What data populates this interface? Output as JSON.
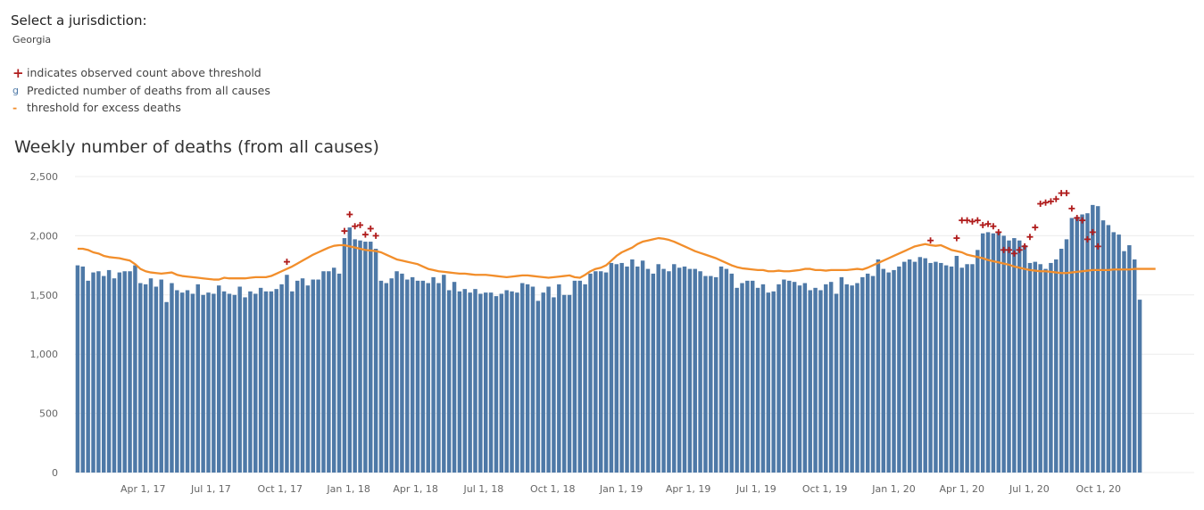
{
  "jurisdiction": {
    "label": "Select a jurisdiction:",
    "selected": "Georgia"
  },
  "legend": [
    {
      "marker": "+",
      "label": "indicates observed count above threshold",
      "color": "#b01c1c"
    },
    {
      "marker": "g",
      "label": "Predicted number of deaths from all causes",
      "color": "#4e79a7"
    },
    {
      "marker": "-",
      "label": "threshold for excess deaths",
      "color": "#f28e2b"
    }
  ],
  "chart_data": {
    "type": "bar",
    "title": "Weekly number of deaths (from all causes)",
    "xlabel": "",
    "ylabel": "",
    "ylim": [
      0,
      2500
    ],
    "yticks": [
      0,
      500,
      1000,
      1500,
      2000,
      2500
    ],
    "ytick_labels": [
      "0",
      "500",
      "1,000",
      "1,500",
      "2,000",
      "2,500"
    ],
    "xticks": [
      {
        "label": "Apr 1, 17",
        "week_index": 12.5
      },
      {
        "label": "Jul 1, 17",
        "week_index": 25.5
      },
      {
        "label": "Oct 1, 17",
        "week_index": 38.7
      },
      {
        "label": "Jan 1, 18",
        "week_index": 51.8
      },
      {
        "label": "Apr 1, 18",
        "week_index": 64.6
      },
      {
        "label": "Jul 1, 18",
        "week_index": 77.6
      },
      {
        "label": "Oct 1, 18",
        "week_index": 90.8
      },
      {
        "label": "Jan 1, 19",
        "week_index": 103.9
      },
      {
        "label": "Apr 1, 19",
        "week_index": 116.7
      },
      {
        "label": "Jul 1, 19",
        "week_index": 129.7
      },
      {
        "label": "Oct 1, 19",
        "week_index": 142.8
      },
      {
        "label": "Jan 1, 20",
        "week_index": 156.0
      },
      {
        "label": "Apr 1, 20",
        "week_index": 169.0
      },
      {
        "label": "Jul 1, 20",
        "week_index": 181.9
      },
      {
        "label": "Oct 1, 20",
        "week_index": 195.1
      }
    ],
    "grid": true,
    "legend_position": "top-left",
    "colors": {
      "bars": "#4e79a7",
      "threshold": "#f28e2b",
      "above": "#b01c1c"
    },
    "series": [
      {
        "name": "Predicted number of deaths from all causes",
        "values": [
          1750,
          1740,
          1620,
          1690,
          1700,
          1660,
          1710,
          1640,
          1690,
          1700,
          1700,
          1750,
          1600,
          1590,
          1640,
          1570,
          1630,
          1440,
          1600,
          1540,
          1520,
          1540,
          1510,
          1590,
          1500,
          1520,
          1510,
          1580,
          1530,
          1510,
          1500,
          1570,
          1480,
          1530,
          1510,
          1560,
          1530,
          1530,
          1550,
          1590,
          1670,
          1530,
          1620,
          1640,
          1580,
          1630,
          1630,
          1700,
          1700,
          1730,
          1680,
          1980,
          2070,
          1970,
          1960,
          1950,
          1950,
          1890,
          1620,
          1600,
          1640,
          1700,
          1680,
          1630,
          1650,
          1620,
          1620,
          1600,
          1650,
          1600,
          1670,
          1540,
          1610,
          1530,
          1550,
          1520,
          1550,
          1510,
          1520,
          1520,
          1490,
          1510,
          1540,
          1530,
          1520,
          1600,
          1590,
          1570,
          1450,
          1520,
          1570,
          1480,
          1590,
          1500,
          1500,
          1620,
          1620,
          1590,
          1680,
          1700,
          1700,
          1690,
          1770,
          1760,
          1770,
          1740,
          1800,
          1740,
          1790,
          1720,
          1680,
          1760,
          1720,
          1700,
          1760,
          1730,
          1740,
          1720,
          1720,
          1700,
          1660,
          1660,
          1650,
          1740,
          1720,
          1680,
          1560,
          1600,
          1620,
          1620,
          1560,
          1590,
          1520,
          1530,
          1590,
          1630,
          1620,
          1610,
          1580,
          1600,
          1540,
          1560,
          1540,
          1590,
          1610,
          1510,
          1650,
          1590,
          1580,
          1600,
          1650,
          1680,
          1660,
          1800,
          1720,
          1690,
          1710,
          1740,
          1780,
          1800,
          1780,
          1820,
          1810,
          1770,
          1780,
          1770,
          1750,
          1740,
          1830,
          1730,
          1760,
          1760,
          1880,
          2020,
          2030,
          2020,
          2030,
          2000,
          1960,
          1980,
          1960,
          1920,
          1770,
          1780,
          1760,
          1720,
          1770,
          1800,
          1890,
          1970,
          2150,
          2160,
          2180,
          2190,
          2260,
          2250,
          2130,
          2090,
          2030,
          2010,
          1870,
          1920,
          1800,
          1460
        ]
      },
      {
        "name": "threshold for excess deaths",
        "values": [
          1890,
          1890,
          1880,
          1860,
          1850,
          1830,
          1820,
          1815,
          1810,
          1800,
          1790,
          1760,
          1720,
          1700,
          1690,
          1685,
          1680,
          1685,
          1690,
          1670,
          1660,
          1655,
          1650,
          1645,
          1640,
          1635,
          1630,
          1630,
          1645,
          1640,
          1640,
          1640,
          1640,
          1645,
          1650,
          1650,
          1650,
          1660,
          1680,
          1700,
          1720,
          1740,
          1765,
          1790,
          1815,
          1840,
          1860,
          1880,
          1900,
          1915,
          1920,
          1920,
          1910,
          1900,
          1890,
          1880,
          1875,
          1870,
          1860,
          1840,
          1820,
          1800,
          1790,
          1780,
          1770,
          1760,
          1740,
          1720,
          1710,
          1700,
          1695,
          1690,
          1685,
          1680,
          1680,
          1675,
          1670,
          1670,
          1670,
          1665,
          1660,
          1655,
          1650,
          1655,
          1660,
          1665,
          1665,
          1660,
          1655,
          1650,
          1645,
          1650,
          1655,
          1660,
          1665,
          1650,
          1645,
          1670,
          1700,
          1720,
          1730,
          1750,
          1790,
          1830,
          1860,
          1880,
          1900,
          1930,
          1950,
          1960,
          1970,
          1980,
          1975,
          1965,
          1950,
          1930,
          1910,
          1890,
          1870,
          1855,
          1840,
          1825,
          1810,
          1790,
          1770,
          1750,
          1735,
          1725,
          1720,
          1715,
          1710,
          1710,
          1700,
          1700,
          1705,
          1700,
          1700,
          1705,
          1710,
          1720,
          1720,
          1710,
          1710,
          1705,
          1710,
          1710,
          1710,
          1710,
          1715,
          1720,
          1715,
          1730,
          1750,
          1770,
          1790,
          1810,
          1830,
          1850,
          1870,
          1890,
          1910,
          1920,
          1930,
          1920,
          1915,
          1920,
          1900,
          1880,
          1870,
          1860,
          1840,
          1830,
          1820,
          1810,
          1795,
          1785,
          1775,
          1765,
          1755,
          1740,
          1730,
          1720,
          1710,
          1705,
          1700,
          1700,
          1695,
          1690,
          1685,
          1685,
          1690,
          1695,
          1700,
          1705,
          1710,
          1710,
          1710,
          1710,
          1715,
          1715,
          1715,
          1715,
          1720,
          1720,
          1720,
          1720,
          1720
        ]
      }
    ],
    "above_threshold_markers": [
      {
        "week_index": 40,
        "value": 1780
      },
      {
        "week_index": 51,
        "value": 2040
      },
      {
        "week_index": 52,
        "value": 2180
      },
      {
        "week_index": 53,
        "value": 2080
      },
      {
        "week_index": 54,
        "value": 2090
      },
      {
        "week_index": 55,
        "value": 2010
      },
      {
        "week_index": 56,
        "value": 2060
      },
      {
        "week_index": 57,
        "value": 2000
      },
      {
        "week_index": 163,
        "value": 1960
      },
      {
        "week_index": 168,
        "value": 1980
      },
      {
        "week_index": 169,
        "value": 2130
      },
      {
        "week_index": 170,
        "value": 2130
      },
      {
        "week_index": 171,
        "value": 2120
      },
      {
        "week_index": 172,
        "value": 2130
      },
      {
        "week_index": 173,
        "value": 2090
      },
      {
        "week_index": 174,
        "value": 2100
      },
      {
        "week_index": 175,
        "value": 2080
      },
      {
        "week_index": 176,
        "value": 2030
      },
      {
        "week_index": 177,
        "value": 1880
      },
      {
        "week_index": 178,
        "value": 1880
      },
      {
        "week_index": 179,
        "value": 1850
      },
      {
        "week_index": 180,
        "value": 1880
      },
      {
        "week_index": 181,
        "value": 1910
      },
      {
        "week_index": 182,
        "value": 1990
      },
      {
        "week_index": 183,
        "value": 2070
      },
      {
        "week_index": 184,
        "value": 2270
      },
      {
        "week_index": 185,
        "value": 2280
      },
      {
        "week_index": 186,
        "value": 2290
      },
      {
        "week_index": 187,
        "value": 2310
      },
      {
        "week_index": 188,
        "value": 2360
      },
      {
        "week_index": 189,
        "value": 2360
      },
      {
        "week_index": 190,
        "value": 2230
      },
      {
        "week_index": 191,
        "value": 2150
      },
      {
        "week_index": 192,
        "value": 2130
      },
      {
        "week_index": 193,
        "value": 1970
      },
      {
        "week_index": 194,
        "value": 2030
      },
      {
        "week_index": 195,
        "value": 1910
      }
    ]
  }
}
